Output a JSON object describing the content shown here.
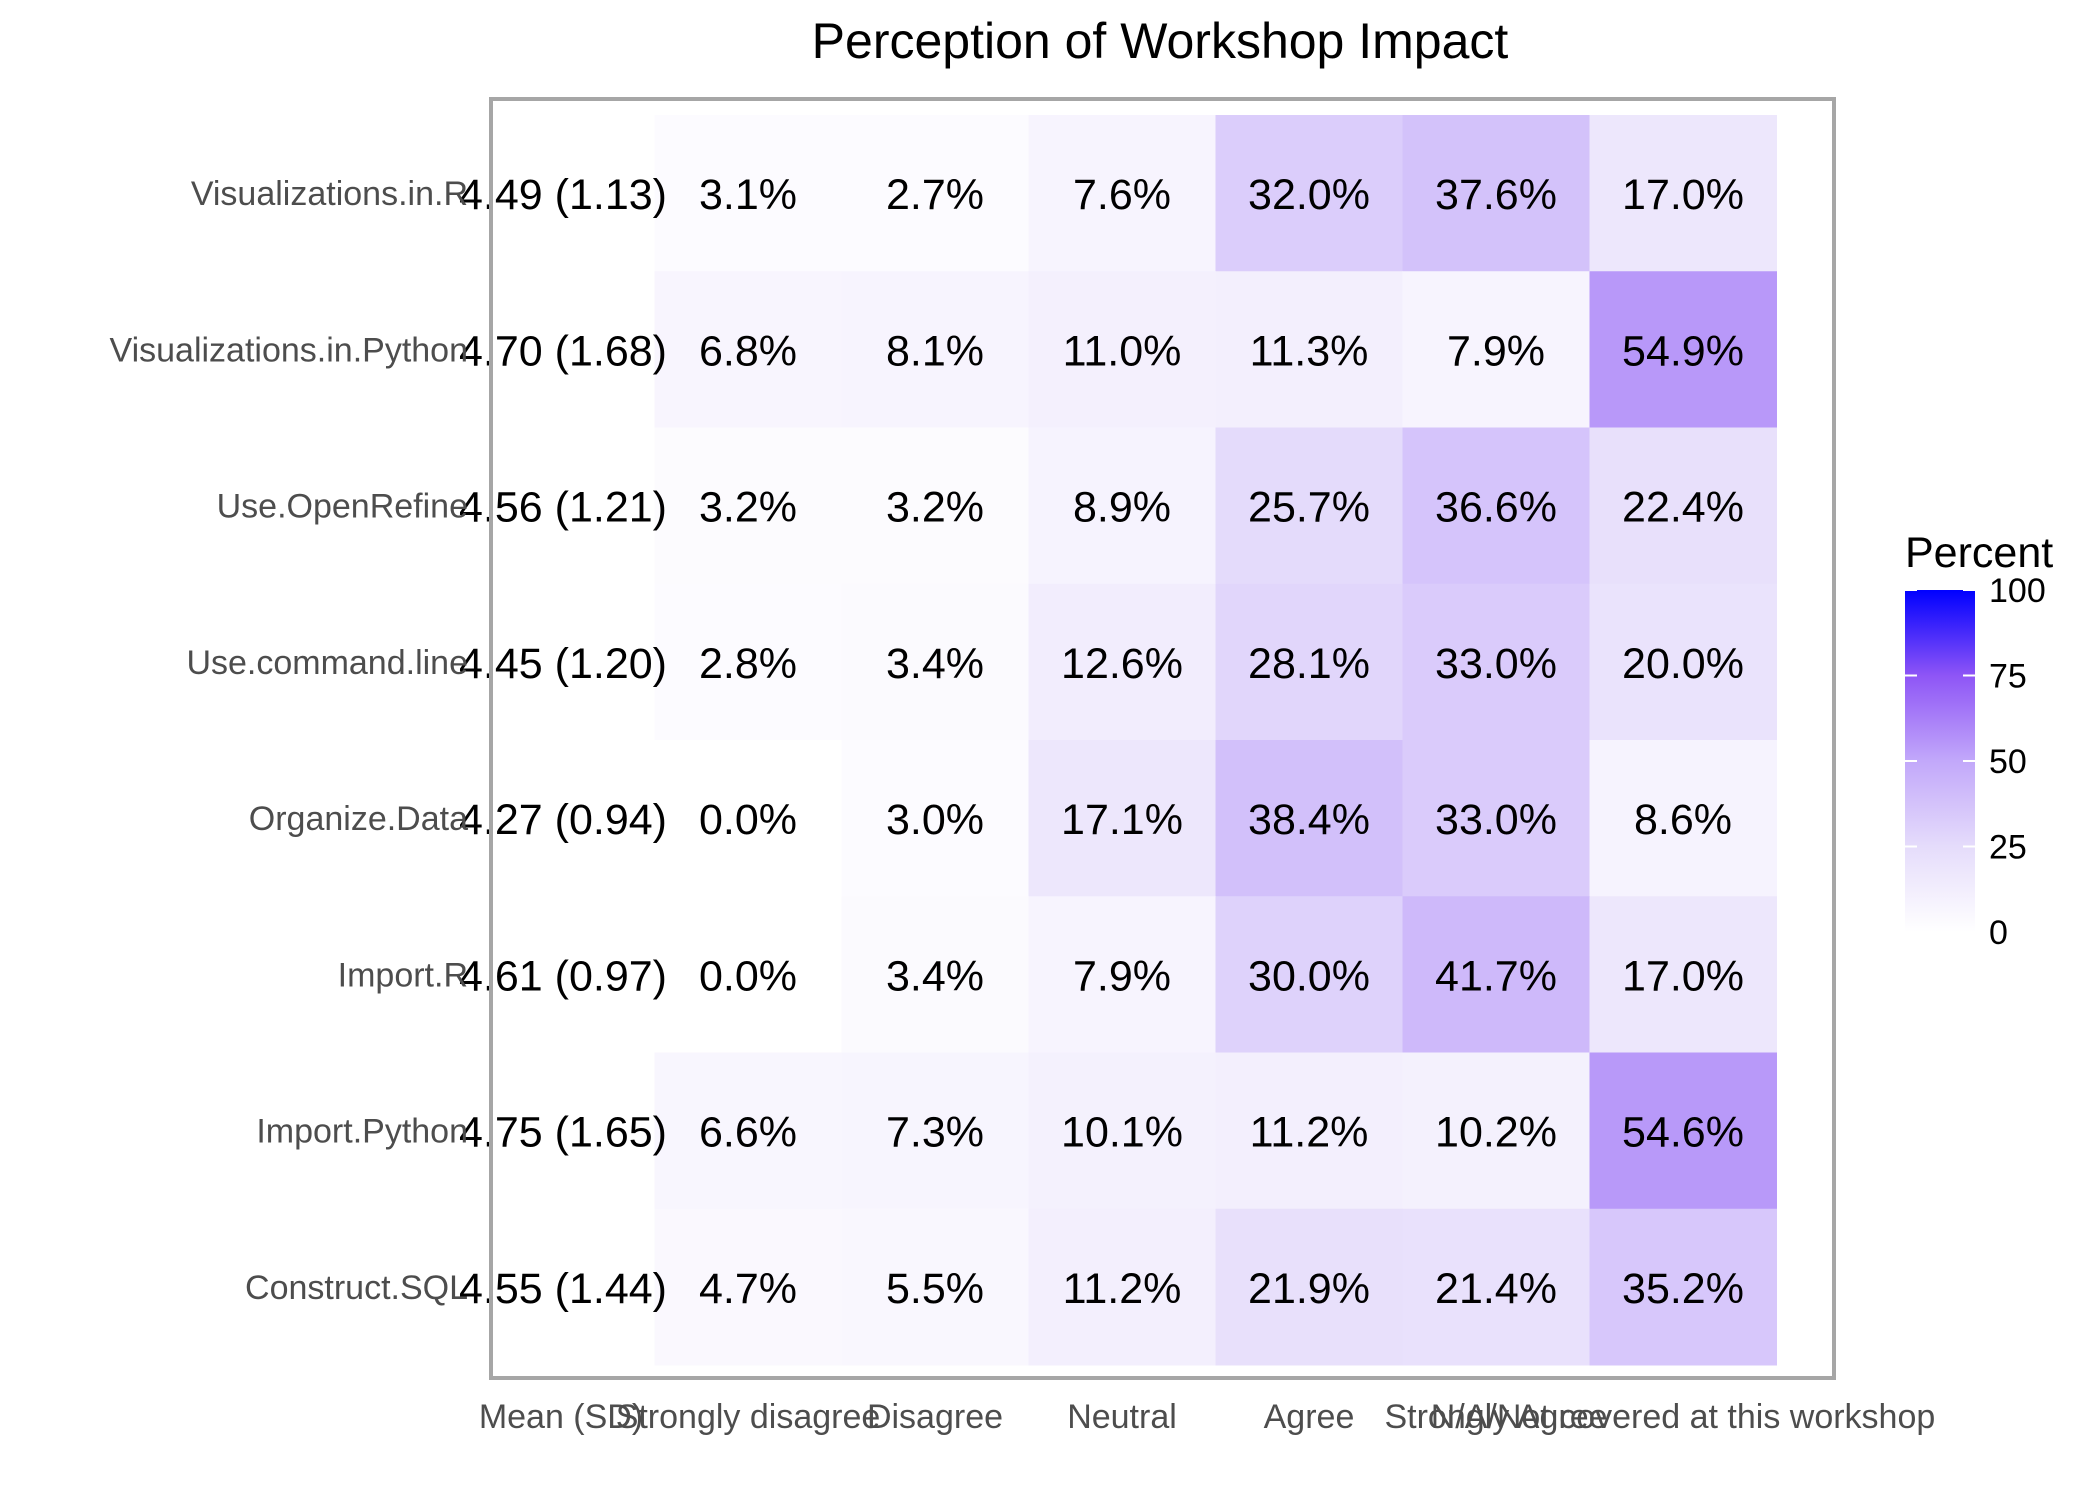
{
  "chart_data": {
    "type": "heatmap",
    "title": "Perception of Workshop Impact",
    "xlabel": "",
    "ylabel": "",
    "columns": [
      "Mean (SD)",
      "Strongly disagree",
      "Disagree",
      "Neutral",
      "Agree",
      "Strongly Agree",
      "N/A/Not covered at this workshop"
    ],
    "rows": [
      "Visualizations.in.R",
      "Visualizations.in.Python",
      "Use.OpenRefine",
      "Use.command.line",
      "Organize.Data",
      "Import.R",
      "Import.Python",
      "Construct.SQL"
    ],
    "mean_sd": [
      "4.49 (1.13)",
      "4.70 (1.68)",
      "4.56 (1.21)",
      "4.45 (1.20)",
      "4.27 (0.94)",
      "4.61 (0.97)",
      "4.75 (1.65)",
      "4.55 (1.44)"
    ],
    "values": [
      [
        3.1,
        2.7,
        7.6,
        32.0,
        37.6,
        17.0
      ],
      [
        6.8,
        8.1,
        11.0,
        11.3,
        7.9,
        54.9
      ],
      [
        3.2,
        3.2,
        8.9,
        25.7,
        36.6,
        22.4
      ],
      [
        2.8,
        3.4,
        12.6,
        28.1,
        33.0,
        20.0
      ],
      [
        0.0,
        3.0,
        17.1,
        38.4,
        33.0,
        8.6
      ],
      [
        0.0,
        3.4,
        7.9,
        30.0,
        41.7,
        17.0
      ],
      [
        6.6,
        7.3,
        10.1,
        11.2,
        10.2,
        54.6
      ],
      [
        4.7,
        5.5,
        11.2,
        21.9,
        21.4,
        35.2
      ]
    ],
    "labels": [
      [
        "3.1%",
        "2.7%",
        "7.6%",
        "32.0%",
        "37.6%",
        "17.0%"
      ],
      [
        "6.8%",
        "8.1%",
        "11.0%",
        "11.3%",
        "7.9%",
        "54.9%"
      ],
      [
        "3.2%",
        "3.2%",
        "8.9%",
        "25.7%",
        "36.6%",
        "22.4%"
      ],
      [
        "2.8%",
        "3.4%",
        "12.6%",
        "28.1%",
        "33.0%",
        "20.0%"
      ],
      [
        "0.0%",
        "3.0%",
        "17.1%",
        "38.4%",
        "33.0%",
        "8.6%"
      ],
      [
        "0.0%",
        "3.4%",
        "7.9%",
        "30.0%",
        "41.7%",
        "17.0%"
      ],
      [
        "6.6%",
        "7.3%",
        "10.1%",
        "11.2%",
        "10.2%",
        "54.6%"
      ],
      [
        "4.7%",
        "5.5%",
        "11.2%",
        "21.9%",
        "21.4%",
        "35.2%"
      ]
    ],
    "color_scale": {
      "low": "#ffffff",
      "high": "#0000ff",
      "domain": [
        0,
        100
      ],
      "legend_title": "Percent",
      "ticks": [
        0,
        25,
        50,
        75,
        100
      ],
      "tick_labels": [
        "0",
        "25",
        "50",
        "75",
        "100"
      ],
      "legend_position": "right"
    },
    "panel_border_color": "#a6a6a6",
    "grid": false
  }
}
